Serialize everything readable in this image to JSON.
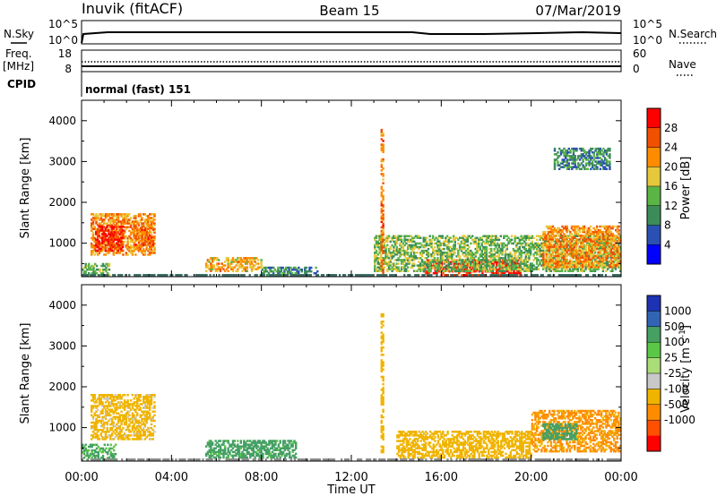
{
  "header": {
    "station": "Inuvik (fitACF)",
    "beam": "Beam 15",
    "date": "07/Mar/2019"
  },
  "status_panels": {
    "nsky_label": "N.Sky",
    "nsky_ticks": [
      "10^5",
      "10^0"
    ],
    "nsearch_label": "N.Search",
    "nsearch_ticks": [
      "10^5",
      "10^0"
    ],
    "freq_label": [
      "Freq.",
      "[MHz]"
    ],
    "freq_ticks": [
      "18",
      "8"
    ],
    "nave_label": "Nave",
    "nave_ticks": [
      "60",
      "0"
    ],
    "cpid_label": "CPID",
    "cpid_value": "normal (fast) 151"
  },
  "x_axis": {
    "title": "Time UT",
    "ticks": [
      "00:00",
      "04:00",
      "08:00",
      "12:00",
      "16:00",
      "20:00",
      "00:00"
    ]
  },
  "colors": {
    "power": [
      "#0000ff",
      "#2a50b4",
      "#3c8c5a",
      "#5ab446",
      "#e6c83c",
      "#ff8c00",
      "#f05000",
      "#ff0000"
    ],
    "velocity": [
      "#ff0000",
      "#ff5000",
      "#ff8c00",
      "#f0b400",
      "#c8c8c8",
      "#aadc78",
      "#5ac846",
      "#46a064",
      "#3264b4",
      "#1e32b4"
    ]
  },
  "chart_data": [
    {
      "type": "heatmap",
      "panel": "power",
      "xlabel": "Time UT",
      "ylabel": "Slant Range [km]",
      "x_unit": "hours UT",
      "xlim": [
        0,
        24
      ],
      "ylim": [
        180,
        4500
      ],
      "yticks": [
        1000,
        2000,
        3000,
        4000
      ],
      "colorbar": {
        "label": "Power [dB]",
        "ticks": [
          4,
          8,
          12,
          16,
          20,
          24,
          28
        ],
        "range": [
          0,
          32
        ]
      },
      "regions": [
        {
          "t0": 0.4,
          "t1": 3.2,
          "r0": 700,
          "r1": 1700,
          "value": 22
        },
        {
          "t0": 0.6,
          "t1": 1.8,
          "r0": 800,
          "r1": 1400,
          "value": 29
        },
        {
          "t0": 0.0,
          "t1": 1.2,
          "r0": 200,
          "r1": 500,
          "value": 14
        },
        {
          "t0": 2.3,
          "t1": 3.2,
          "r0": 900,
          "r1": 1400,
          "value": 24
        },
        {
          "t0": 5.5,
          "t1": 8.0,
          "r0": 300,
          "r1": 650,
          "value": 20
        },
        {
          "t0": 8.0,
          "t1": 10.5,
          "r0": 200,
          "r1": 420,
          "value": 10
        },
        {
          "t0": 15.2,
          "t1": 19.5,
          "r0": 200,
          "r1": 600,
          "value": 29
        },
        {
          "t0": 13.0,
          "t1": 24.0,
          "r0": 300,
          "r1": 1200,
          "value": 14
        },
        {
          "t0": 20.5,
          "t1": 24.0,
          "r0": 400,
          "r1": 1400,
          "value": 22
        },
        {
          "t0": 21.0,
          "t1": 23.5,
          "r0": 2800,
          "r1": 3300,
          "value": 10
        },
        {
          "t0": 13.3,
          "t1": 13.4,
          "r0": 200,
          "r1": 3800,
          "value": 24
        }
      ]
    },
    {
      "type": "heatmap",
      "panel": "velocity",
      "xlabel": "Time UT",
      "ylabel": "Slant Range [km]",
      "x_unit": "hours UT",
      "xlim": [
        0,
        24
      ],
      "ylim": [
        180,
        4500
      ],
      "yticks": [
        1000,
        2000,
        3000,
        4000
      ],
      "colorbar": {
        "label": "Velocity [m s^-1]",
        "ticks": [
          "1000",
          "500",
          "100",
          "25",
          "-25",
          "-100",
          "-500",
          "-1000"
        ]
      },
      "regions": [
        {
          "t0": 0.4,
          "t1": 3.2,
          "r0": 700,
          "r1": 1800,
          "value": -150
        },
        {
          "t0": 0.0,
          "t1": 1.5,
          "r0": 200,
          "r1": 600,
          "value": 120
        },
        {
          "t0": 5.5,
          "t1": 9.5,
          "r0": 250,
          "r1": 700,
          "value": 150
        },
        {
          "t0": 14.0,
          "t1": 20.0,
          "r0": 250,
          "r1": 900,
          "value": -200
        },
        {
          "t0": 20.0,
          "t1": 24.0,
          "r0": 400,
          "r1": 1400,
          "value": -600
        },
        {
          "t0": 20.5,
          "t1": 22.0,
          "r0": 700,
          "r1": 1100,
          "value": 300
        },
        {
          "t0": 13.3,
          "t1": 13.4,
          "r0": 200,
          "r1": 3800,
          "value": -200
        }
      ]
    }
  ]
}
